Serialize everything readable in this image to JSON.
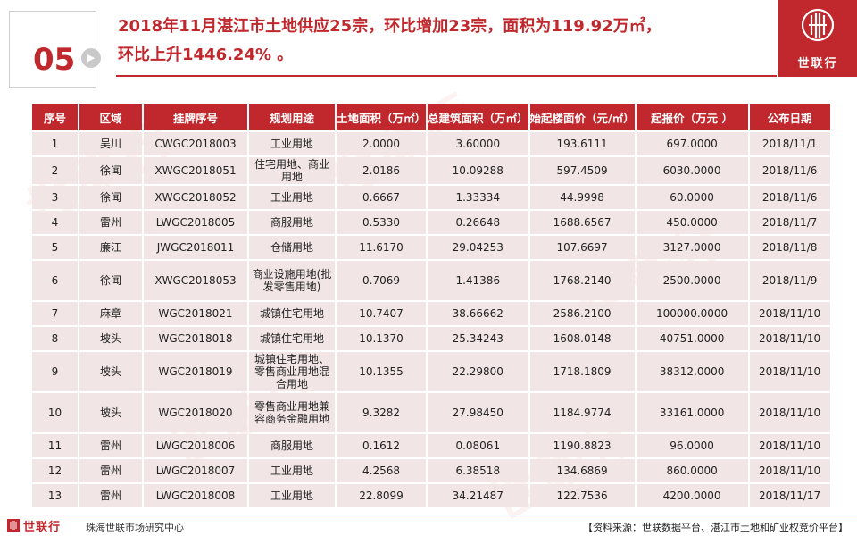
{
  "slide": {
    "number": "05"
  },
  "title": {
    "line1": "2018年11月湛江市土地供应25宗，环比增加23宗，面积为119.92万㎡，",
    "line2": "环比上升1446.24% 。"
  },
  "brand": {
    "name": "世联行"
  },
  "colors": {
    "accent": "#c0282d",
    "row_bg": "#f1e5e5"
  },
  "table": {
    "headers": [
      "序号",
      "区域",
      "挂牌序号",
      "规划用途",
      "土地面积（万㎡）",
      "总建筑面积（万㎡）",
      "始起楼面价（元/㎡）",
      "起报价（万元 ）",
      "公布日期"
    ],
    "rows": [
      [
        "1",
        "吴川",
        "CWGC2018003",
        "工业用地",
        "2.0000",
        "3.60000",
        "193.6111",
        "697.0000",
        "2018/11/1"
      ],
      [
        "2",
        "徐闻",
        "XWGC2018051",
        "住宅用地、商业用地",
        "2.0186",
        "10.09288",
        "597.4509",
        "6030.0000",
        "2018/11/6"
      ],
      [
        "3",
        "徐闻",
        "XWGC2018052",
        "工业用地",
        "0.6667",
        "1.33334",
        "44.9998",
        "60.0000",
        "2018/11/6"
      ],
      [
        "4",
        "雷州",
        "LWGC2018005",
        "商服用地",
        "0.5330",
        "0.26648",
        "1688.6567",
        "450.0000",
        "2018/11/7"
      ],
      [
        "5",
        "廉江",
        "JWGC2018011",
        "仓储用地",
        "11.6170",
        "29.04253",
        "107.6697",
        "3127.0000",
        "2018/11/8"
      ],
      [
        "6",
        "徐闻",
        "XWGC2018053",
        "商业设施用地(批发零售用地)",
        "0.7069",
        "1.41386",
        "1768.2140",
        "2500.0000",
        "2018/11/9"
      ],
      [
        "7",
        "麻章",
        "WGC2018021",
        "城镇住宅用地",
        "10.7407",
        "38.66662",
        "2586.2100",
        "100000.0000",
        "2018/11/10"
      ],
      [
        "8",
        "坡头",
        "WGC2018018",
        "城镇住宅用地",
        "10.1370",
        "25.34243",
        "1608.0148",
        "40751.0000",
        "2018/11/10"
      ],
      [
        "9",
        "坡头",
        "WGC2018019",
        "城镇住宅用地、零售商业用地混合用地",
        "10.1355",
        "22.29800",
        "1718.1809",
        "38312.0000",
        "2018/11/10"
      ],
      [
        "10",
        "坡头",
        "WGC2018020",
        "零售商业用地兼容商务金融用地",
        "9.3282",
        "27.98450",
        "1184.9774",
        "33161.0000",
        "2018/11/10"
      ],
      [
        "11",
        "雷州",
        "LWGC2018006",
        "商服用地",
        "0.1612",
        "0.08061",
        "1190.8823",
        "96.0000",
        "2018/11/10"
      ],
      [
        "12",
        "雷州",
        "LWGC2018007",
        "工业用地",
        "4.2568",
        "6.38518",
        "134.6869",
        "860.0000",
        "2018/11/10"
      ],
      [
        "13",
        "雷州",
        "LWGC2018008",
        "工业用地",
        "22.8099",
        "34.21487",
        "122.7536",
        "4200.0000",
        "2018/11/17"
      ]
    ]
  },
  "footer": {
    "brand": "世联行",
    "center": "珠海世联市场研究中心",
    "source": "【资料来源：世联数据平台、湛江市土地和矿业权竞价平台】"
  }
}
